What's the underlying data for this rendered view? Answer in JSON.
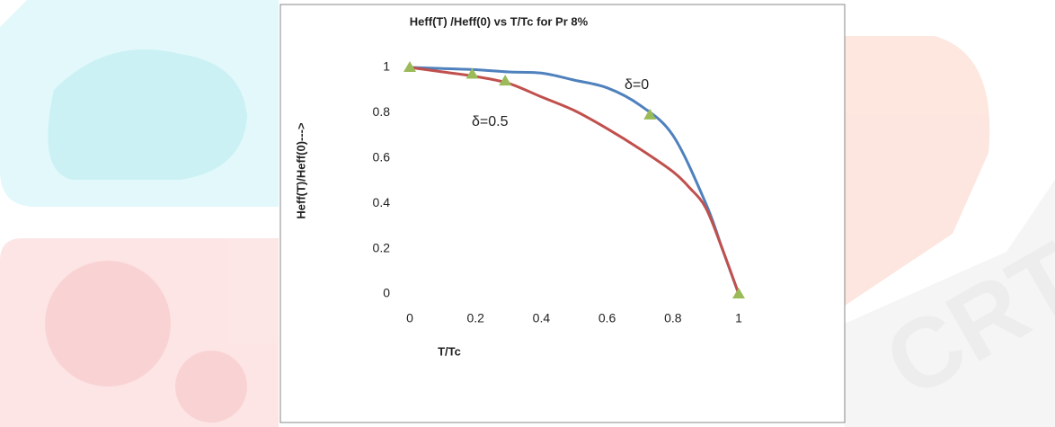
{
  "watermark_text": "CRT",
  "chart_data": {
    "type": "line",
    "title": "Heff(T) /Heff(0) vs T/Tc  for Pr 8%",
    "x_label": "T/Tc",
    "y_label": "Heff(T)/Heff(0)--->",
    "annotations": [
      "δ=0",
      "δ=0.5"
    ],
    "xlim": [
      0,
      1
    ],
    "xticks": [
      0,
      0.2,
      0.4,
      0.6,
      0.8,
      1
    ],
    "ylim": [
      0,
      1
    ],
    "yticks": [
      0,
      0.2,
      0.4,
      0.6,
      0.8,
      1
    ],
    "grid": false,
    "series": [
      {
        "color": "#4f81bd",
        "x": [
          0,
          0.1,
          0.2,
          0.3,
          0.4,
          0.5,
          0.6,
          0.7,
          0.8,
          0.9,
          0.95,
          1
        ],
        "values": [
          1,
          0.995,
          0.99,
          0.98,
          0.975,
          0.944,
          0.91,
          0.833,
          0.7,
          0.4,
          0.2,
          0
        ]
      },
      {
        "color": "#c0504d",
        "x": [
          0,
          0.1,
          0.2,
          0.3,
          0.4,
          0.5,
          0.6,
          0.7,
          0.8,
          0.85,
          0.9,
          0.95,
          1
        ],
        "values": [
          1,
          0.98,
          0.96,
          0.93,
          0.87,
          0.81,
          0.73,
          0.64,
          0.54,
          0.47,
          0.38,
          0.2,
          0
        ]
      },
      {
        "color": "#9bbb59",
        "marker": "triangle",
        "x": [
          0,
          0.19,
          0.29,
          0.73,
          1
        ],
        "values": [
          1,
          0.97,
          0.94,
          0.79,
          0
        ]
      }
    ]
  }
}
